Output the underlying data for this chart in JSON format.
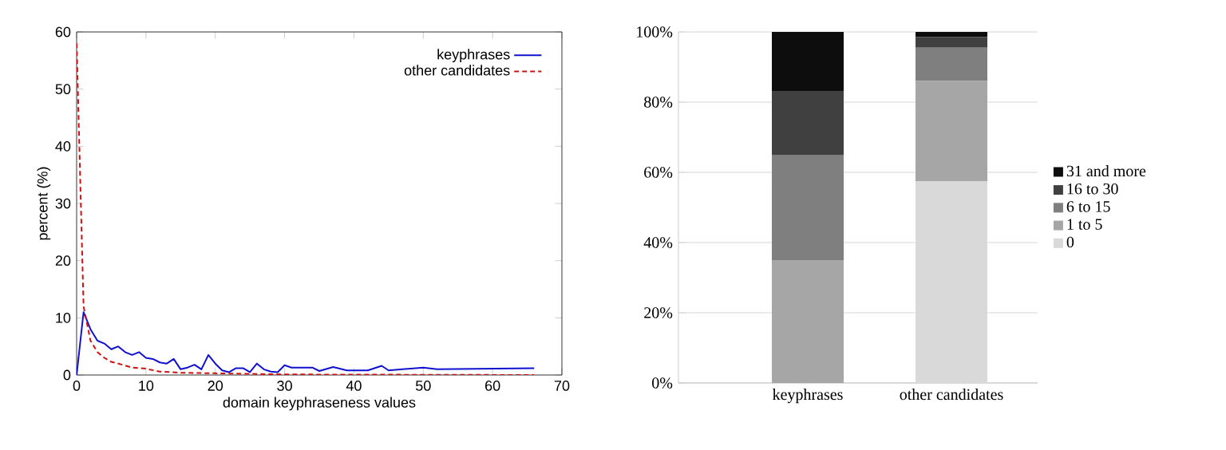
{
  "chart_data": [
    {
      "type": "line",
      "xlabel": "domain keyphraseness values",
      "ylabel": "percent (%)",
      "xlim": [
        0,
        70
      ],
      "ylim": [
        0,
        60
      ],
      "xticks": [
        0,
        10,
        20,
        30,
        40,
        50,
        60,
        70
      ],
      "yticks": [
        0,
        10,
        20,
        30,
        40,
        50,
        60
      ],
      "legend": "top right",
      "grid": false,
      "marker": "none",
      "series": [
        {
          "name": "keyphrases",
          "color": "#1010d0",
          "line_style": "solid",
          "x": [
            0,
            1,
            2,
            3,
            4,
            5,
            6,
            7,
            8,
            9,
            10,
            11,
            12,
            13,
            14,
            15,
            16,
            17,
            18,
            19,
            20,
            21,
            22,
            23,
            24,
            25,
            26,
            27,
            28,
            29,
            30,
            31,
            34,
            35,
            37,
            39,
            42,
            44,
            45,
            50,
            52,
            66
          ],
          "values": [
            0,
            11,
            8,
            6,
            5.5,
            4.5,
            5,
            4,
            3.5,
            4,
            3,
            2.8,
            2.2,
            2,
            2.8,
            1,
            1.3,
            1.8,
            1,
            3.5,
            2,
            0.8,
            0.5,
            1.2,
            1.2,
            0.5,
            2,
            1,
            0.6,
            0.5,
            1.7,
            1.3,
            1.3,
            0.7,
            1.4,
            0.8,
            0.8,
            1.6,
            0.8,
            1.3,
            1,
            1.2
          ]
        },
        {
          "name": "other candidates",
          "color": "#d01010",
          "line_style": "dashed",
          "x": [
            0,
            1,
            2,
            3,
            4,
            5,
            6,
            8,
            10,
            12,
            15,
            20,
            30,
            66
          ],
          "values": [
            58,
            12,
            6,
            4,
            3,
            2.3,
            2,
            1.3,
            1.1,
            0.6,
            0.4,
            0.3,
            0.1,
            0
          ]
        }
      ]
    },
    {
      "type": "bar",
      "stacked": true,
      "categories": [
        "keyphrases",
        "other candidates"
      ],
      "ylim": [
        0,
        100
      ],
      "yticks": [
        {
          "value": 0,
          "label": "0%"
        },
        {
          "value": 20,
          "label": "20%"
        },
        {
          "value": 40,
          "label": "40%"
        },
        {
          "value": 60,
          "label": "60%"
        },
        {
          "value": 80,
          "label": "80%"
        },
        {
          "value": 100,
          "label": "100%"
        }
      ],
      "grid": "y",
      "legend": "right",
      "series": [
        {
          "name": "0",
          "color": "#d9d9d9",
          "values": [
            0,
            57.5
          ]
        },
        {
          "name": "1 to 5",
          "color": "#a6a6a6",
          "values": [
            35,
            28.5
          ]
        },
        {
          "name": "6 to 15",
          "color": "#7f7f7f",
          "values": [
            30,
            9.5
          ]
        },
        {
          "name": "16 to 30",
          "color": "#404040",
          "values": [
            18,
            3
          ]
        },
        {
          "name": "31 and more",
          "color": "#0d0d0d",
          "values": [
            17,
            1.5
          ]
        }
      ]
    }
  ]
}
